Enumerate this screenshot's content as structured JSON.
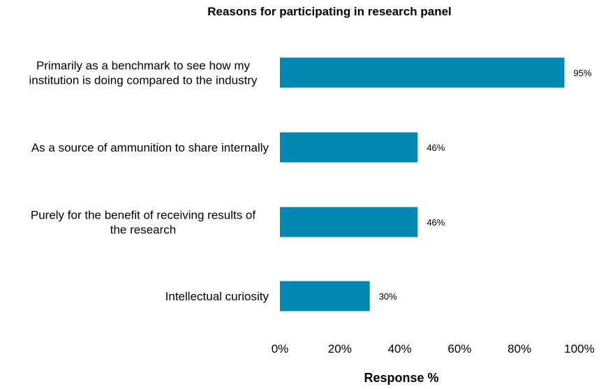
{
  "chart_data": {
    "type": "bar",
    "orientation": "horizontal",
    "title": "Reasons for participating in  research panel",
    "xlabel": "Response %",
    "ylabel": "",
    "categories": [
      [
        "Primarily as a benchmark to see how my",
        "institution is doing compared to the industry"
      ],
      [
        "As a source of ammunition to share internally"
      ],
      [
        "Purely for the benefit of receiving results of",
        "the research"
      ],
      [
        "Intellectual curiosity"
      ]
    ],
    "values": [
      95,
      46,
      46,
      30
    ],
    "value_labels": [
      "95%",
      "46%",
      "46%",
      "30%"
    ],
    "xlim": [
      0,
      100
    ],
    "xticks": [
      0,
      20,
      40,
      60,
      80,
      100
    ],
    "xtick_labels": [
      "0%",
      "20%",
      "40%",
      "60%",
      "80%",
      "100%"
    ],
    "grid": false,
    "legend": "none",
    "bar_color": "#0289b2"
  }
}
